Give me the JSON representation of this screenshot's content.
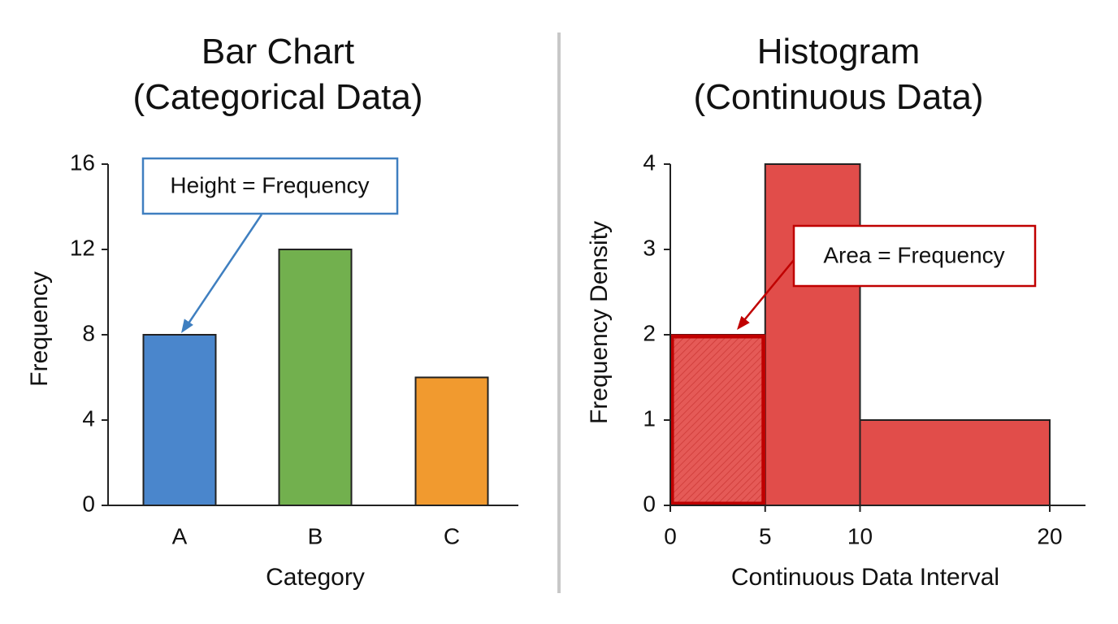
{
  "chart_data": [
    {
      "type": "bar",
      "title_lines": [
        "Bar Chart",
        "(Categorical Data)"
      ],
      "categories": [
        "A",
        "B",
        "C"
      ],
      "values": [
        8,
        12,
        6
      ],
      "colors": [
        "#4a86cc",
        "#72b04e",
        "#f19a2f"
      ],
      "xlabel": "Category",
      "ylabel": "Frequency",
      "ylim": [
        0,
        16
      ],
      "yticks": [
        "0",
        "4",
        "8",
        "12",
        "16"
      ],
      "annotation": {
        "text": "Height = Frequency",
        "color": "#3f7fc0",
        "points_to": "A"
      },
      "grid": false,
      "legend": "none"
    },
    {
      "type": "bar",
      "subtype": "histogram",
      "title_lines": [
        "Histogram",
        "(Continuous Data)"
      ],
      "bins": [
        {
          "start": 0,
          "end": 5,
          "density": 2
        },
        {
          "start": 5,
          "end": 10,
          "density": 4
        },
        {
          "start": 10,
          "end": 20,
          "density": 1
        }
      ],
      "color": "#e14d4a",
      "highlight_color": "#c00000",
      "highlight_bin": 0,
      "xlabel": "Continuous Data Interval",
      "ylabel": "Frequency Density",
      "xlim": [
        0,
        20
      ],
      "ylim": [
        0,
        4
      ],
      "xticks": [
        "0",
        "5",
        "10",
        "20"
      ],
      "yticks": [
        "0",
        "1",
        "2",
        "3",
        "4"
      ],
      "annotation": {
        "text": "Area = Frequency",
        "color": "#c00000",
        "points_to_bin": 0
      },
      "grid": false,
      "legend": "none"
    }
  ],
  "divider_color": "#c8c8c8"
}
